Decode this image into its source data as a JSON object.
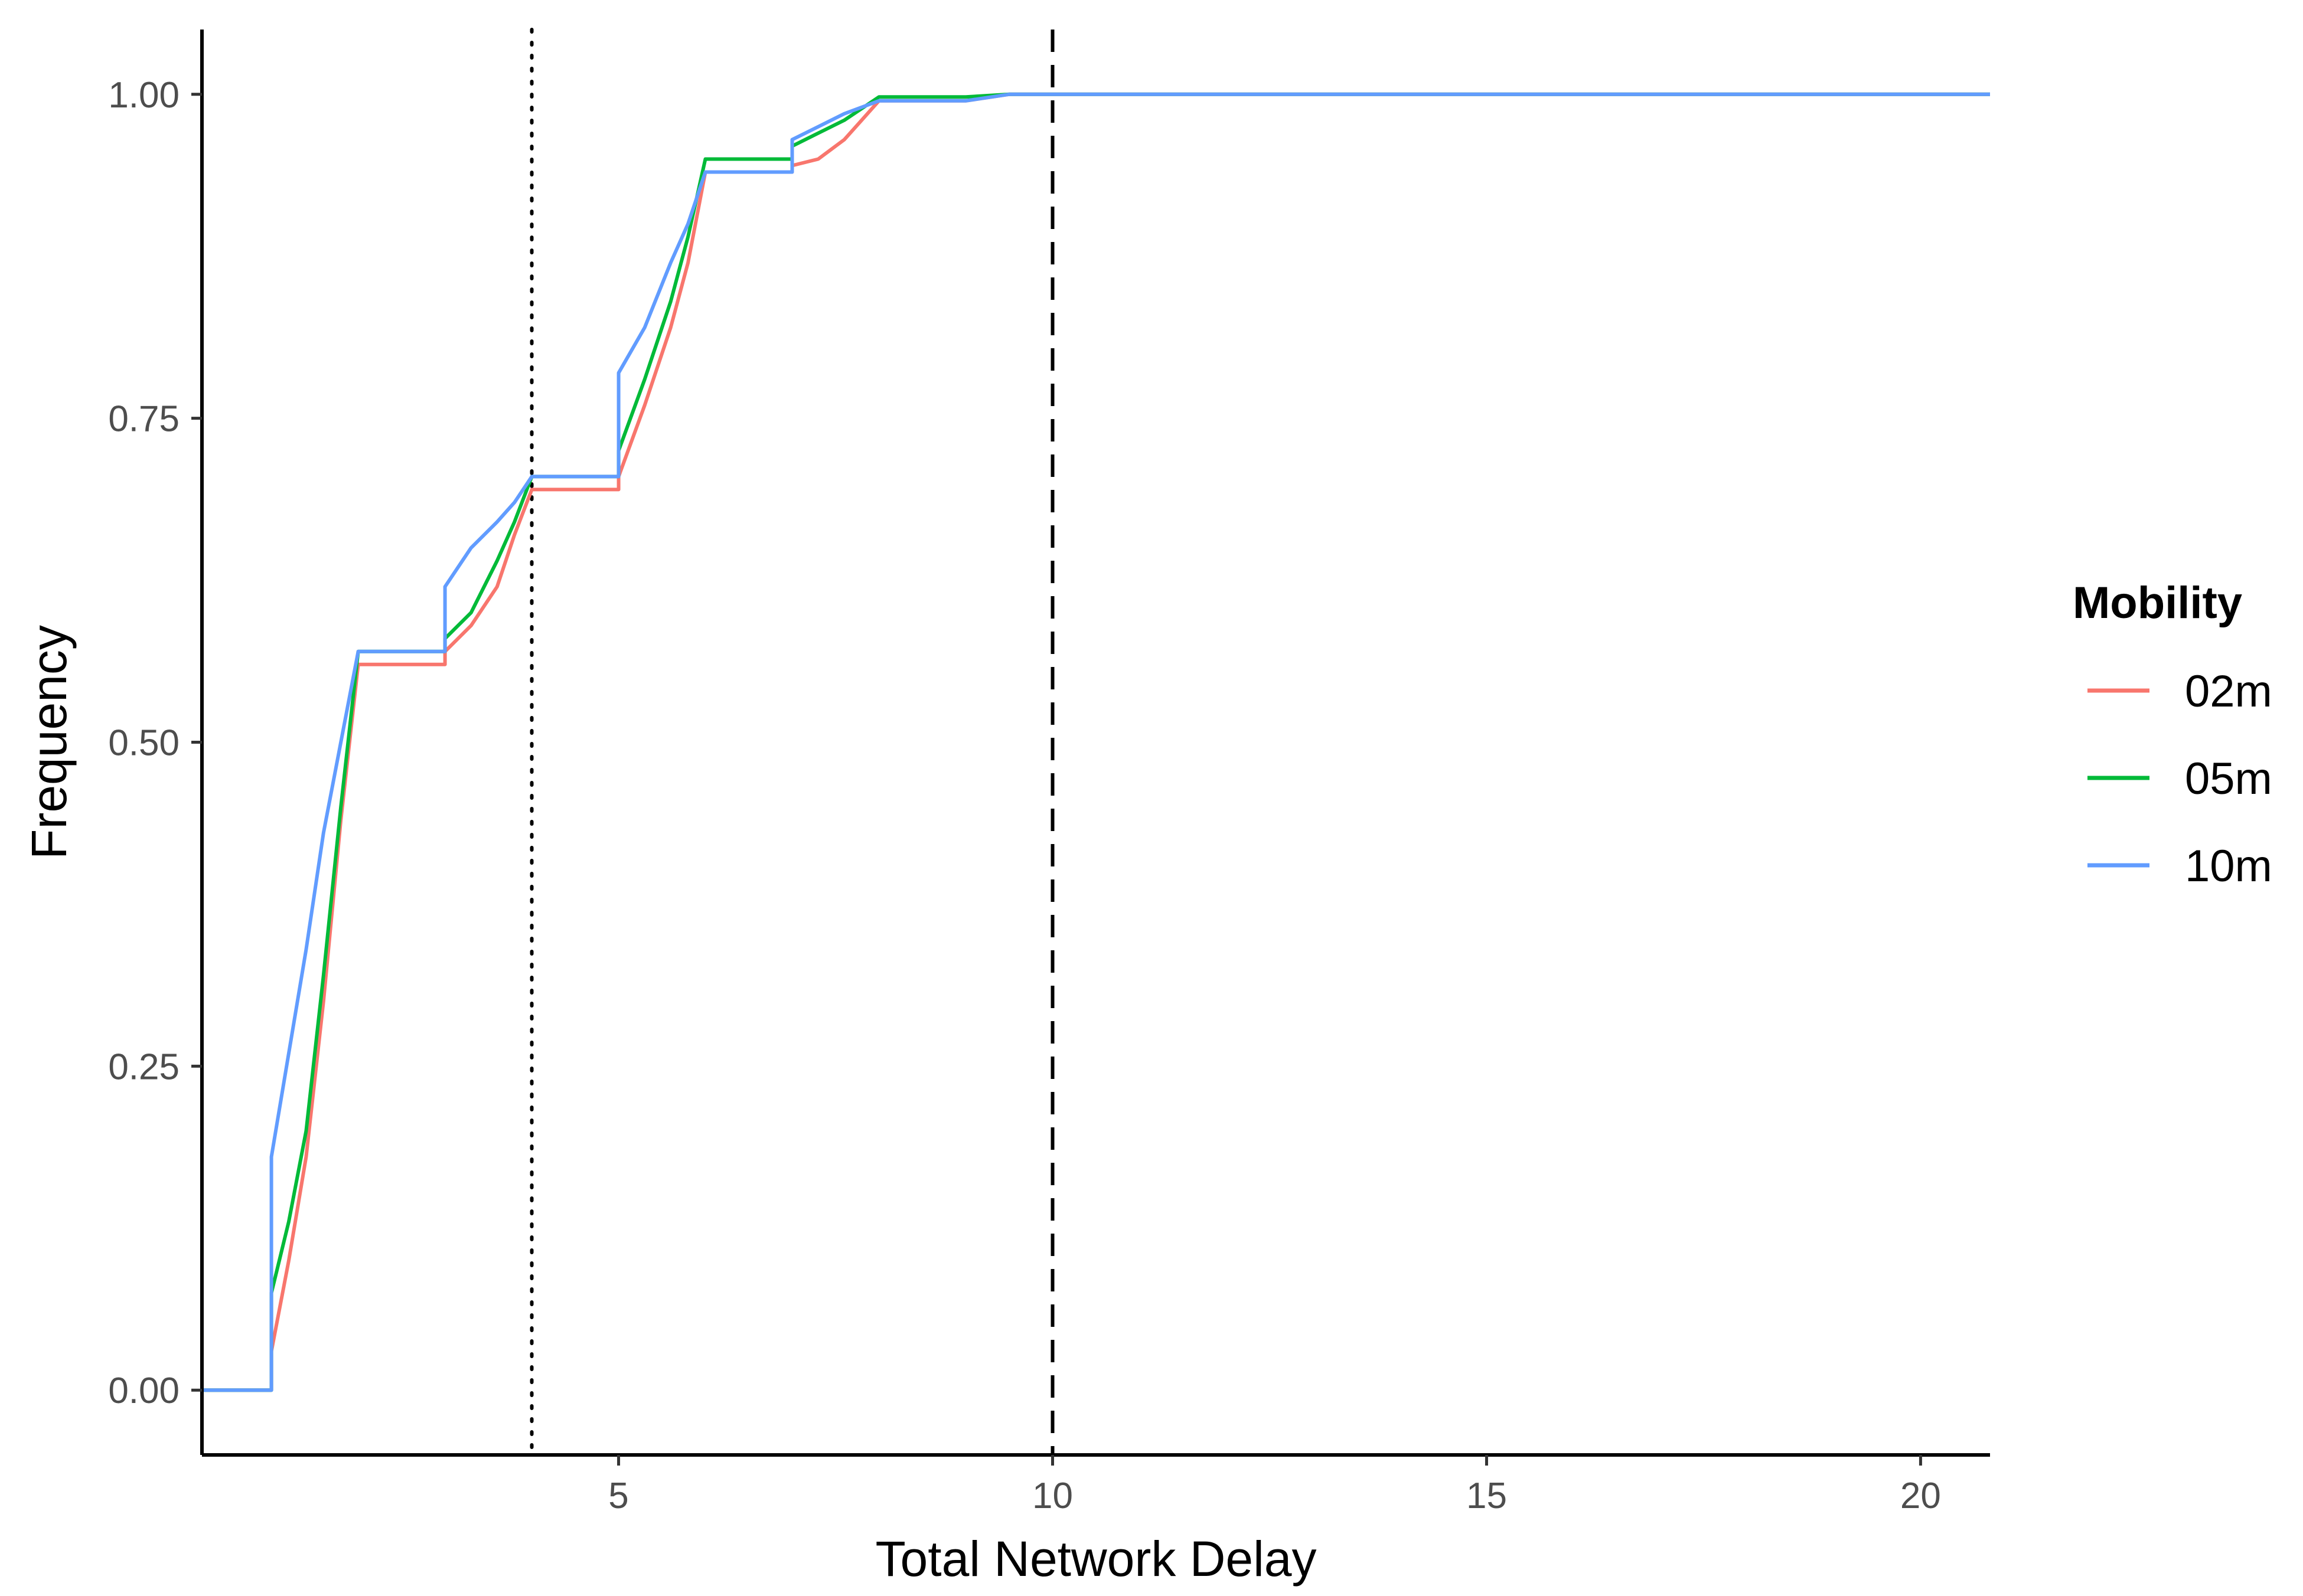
{
  "chart_data": {
    "type": "line",
    "xlabel": "Total Network Delay",
    "ylabel": "Frequency",
    "xlim": [
      0.2,
      20.8
    ],
    "ylim": [
      -0.05,
      1.05
    ],
    "x_ticks": [
      5,
      10,
      15,
      20
    ],
    "y_ticks": [
      0.0,
      0.25,
      0.5,
      0.75,
      1.0
    ],
    "x_tick_labels": [
      "5",
      "10",
      "15",
      "20"
    ],
    "y_tick_labels": [
      "0.00",
      "0.25",
      "0.50",
      "0.75",
      "1.00"
    ],
    "grid": false,
    "legend": {
      "title": "Mobility",
      "position": "right"
    },
    "reference_lines": [
      {
        "axis": "x",
        "value": 4,
        "style": "dotted",
        "color": "#000000"
      },
      {
        "axis": "x",
        "value": 10,
        "style": "dashed",
        "color": "#000000"
      }
    ],
    "series": [
      {
        "name": "02m",
        "color": "#F8766D",
        "points": [
          [
            0.2,
            0
          ],
          [
            1,
            0
          ],
          [
            1,
            0.03
          ],
          [
            1.2,
            0.1
          ],
          [
            1.4,
            0.18
          ],
          [
            1.6,
            0.3
          ],
          [
            1.8,
            0.44
          ],
          [
            2,
            0.56
          ],
          [
            3,
            0.56
          ],
          [
            3,
            0.57
          ],
          [
            3.3,
            0.59
          ],
          [
            3.6,
            0.62
          ],
          [
            3.8,
            0.66
          ],
          [
            4,
            0.695
          ],
          [
            5,
            0.695
          ],
          [
            5,
            0.705
          ],
          [
            5.3,
            0.76
          ],
          [
            5.6,
            0.82
          ],
          [
            5.8,
            0.87
          ],
          [
            6,
            0.94
          ],
          [
            7,
            0.94
          ],
          [
            7,
            0.945
          ],
          [
            7.3,
            0.95
          ],
          [
            7.6,
            0.965
          ],
          [
            7.8,
            0.98
          ],
          [
            8,
            0.995
          ],
          [
            9,
            0.995
          ],
          [
            9.5,
            1.0
          ],
          [
            20.8,
            1.0
          ]
        ]
      },
      {
        "name": "05m",
        "color": "#00BA38",
        "points": [
          [
            0.2,
            0
          ],
          [
            1,
            0
          ],
          [
            1,
            0.075
          ],
          [
            1.2,
            0.13
          ],
          [
            1.4,
            0.2
          ],
          [
            1.6,
            0.32
          ],
          [
            1.8,
            0.45
          ],
          [
            2,
            0.57
          ],
          [
            3,
            0.57
          ],
          [
            3,
            0.58
          ],
          [
            3.3,
            0.6
          ],
          [
            3.6,
            0.64
          ],
          [
            3.8,
            0.67
          ],
          [
            4,
            0.705
          ],
          [
            5,
            0.705
          ],
          [
            5,
            0.725
          ],
          [
            5.3,
            0.78
          ],
          [
            5.6,
            0.84
          ],
          [
            5.8,
            0.89
          ],
          [
            6,
            0.95
          ],
          [
            7,
            0.95
          ],
          [
            7,
            0.96
          ],
          [
            7.3,
            0.97
          ],
          [
            7.6,
            0.98
          ],
          [
            8,
            0.998
          ],
          [
            9,
            0.998
          ],
          [
            9.5,
            1.0
          ],
          [
            20.8,
            1.0
          ]
        ]
      },
      {
        "name": "10m",
        "color": "#619CFF",
        "points": [
          [
            0.2,
            0
          ],
          [
            1,
            0
          ],
          [
            1,
            0.18
          ],
          [
            1.2,
            0.26
          ],
          [
            1.4,
            0.34
          ],
          [
            1.6,
            0.43
          ],
          [
            1.8,
            0.5
          ],
          [
            2,
            0.57
          ],
          [
            3,
            0.57
          ],
          [
            3,
            0.62
          ],
          [
            3.3,
            0.65
          ],
          [
            3.6,
            0.67
          ],
          [
            3.8,
            0.685
          ],
          [
            4,
            0.705
          ],
          [
            5,
            0.705
          ],
          [
            5,
            0.785
          ],
          [
            5.3,
            0.82
          ],
          [
            5.6,
            0.87
          ],
          [
            5.8,
            0.9
          ],
          [
            6,
            0.94
          ],
          [
            7,
            0.94
          ],
          [
            7,
            0.965
          ],
          [
            7.3,
            0.975
          ],
          [
            7.6,
            0.985
          ],
          [
            8,
            0.995
          ],
          [
            9,
            0.995
          ],
          [
            9.5,
            1.0
          ],
          [
            20.8,
            1.0
          ]
        ]
      }
    ]
  }
}
